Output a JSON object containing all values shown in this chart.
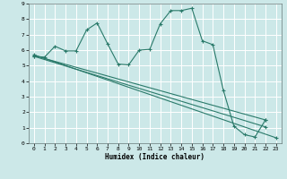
{
  "title": "",
  "xlabel": "Humidex (Indice chaleur)",
  "bg_color": "#cce8e8",
  "grid_color": "#ffffff",
  "line_color": "#2a7a6a",
  "xlim": [
    -0.5,
    23.5
  ],
  "ylim": [
    0,
    9
  ],
  "xticks": [
    0,
    1,
    2,
    3,
    4,
    5,
    6,
    7,
    8,
    9,
    10,
    11,
    12,
    13,
    14,
    15,
    16,
    17,
    18,
    19,
    20,
    21,
    22,
    23
  ],
  "yticks": [
    0,
    1,
    2,
    3,
    4,
    5,
    6,
    7,
    8,
    9
  ],
  "line1_x": [
    0,
    1,
    2,
    3,
    4,
    5,
    6,
    7,
    8,
    9,
    10,
    11,
    12,
    13,
    14,
    15,
    16,
    17,
    18,
    19,
    20,
    21,
    22
  ],
  "line1_y": [
    5.6,
    5.55,
    6.25,
    5.95,
    5.95,
    7.3,
    7.75,
    6.4,
    5.1,
    5.05,
    6.0,
    6.05,
    7.7,
    8.55,
    8.55,
    8.7,
    6.6,
    6.35,
    3.4,
    1.1,
    0.55,
    0.4,
    1.5
  ],
  "line2_x": [
    0,
    23
  ],
  "line2_y": [
    5.7,
    0.35
  ],
  "line3_x": [
    0,
    22
  ],
  "line3_y": [
    5.65,
    1.5
  ],
  "line4_x": [
    0,
    22
  ],
  "line4_y": [
    5.6,
    1.05
  ],
  "marker": "+"
}
